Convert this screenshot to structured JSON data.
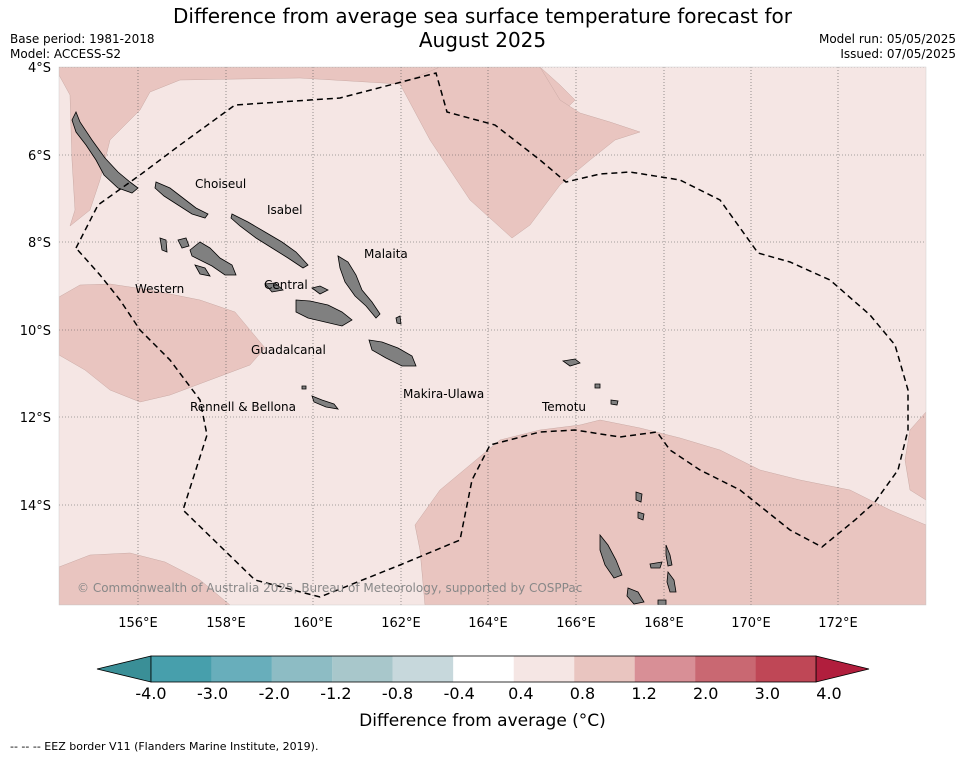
{
  "title_line1": "Difference from average sea surface temperature forecast for",
  "title_line2": "August 2025",
  "base_period": "Base period: 1981-2018",
  "model": "Model: ACCESS-S2",
  "model_run": "Model run: 05/05/2025",
  "issued": "Issued: 07/05/2025",
  "lat_labels": [
    "4°S",
    "6°S",
    "8°S",
    "10°S",
    "12°S",
    "14°S"
  ],
  "lon_labels": [
    "156°E",
    "158°E",
    "160°E",
    "162°E",
    "164°E",
    "166°E",
    "168°E",
    "170°E",
    "172°E"
  ],
  "province_labels": [
    "Choiseul",
    "Isabel",
    "Malaita",
    "Western",
    "Central",
    "Guadalcanal",
    "Makira-Ulawa",
    "Rennell & Bellona",
    "Temotu"
  ],
  "copyright": "© Commonwealth of Australia 2025, Bureau of Meteorology, supported by COSPPac",
  "colorbar": {
    "tick_labels": [
      "-4.0",
      "-3.0",
      "-2.0",
      "-1.2",
      "-0.8",
      "-0.4",
      "0.4",
      "0.8",
      "1.2",
      "2.0",
      "3.0",
      "4.0"
    ],
    "colors": [
      "#479fac",
      "#68aebb",
      "#8dbcc4",
      "#a8c7cb",
      "#c7d8dc",
      "#ffffff",
      "#f5e6e4",
      "#e9c5c0",
      "#d88f96",
      "#c96872",
      "#bf4756"
    ],
    "under_color": "#3a8f97",
    "over_color": "#b11e3d",
    "label": "Difference from average (°C)"
  },
  "footnote": "--  --  -- EEZ border V11 (Flanders Marine Institute, 2019)."
}
